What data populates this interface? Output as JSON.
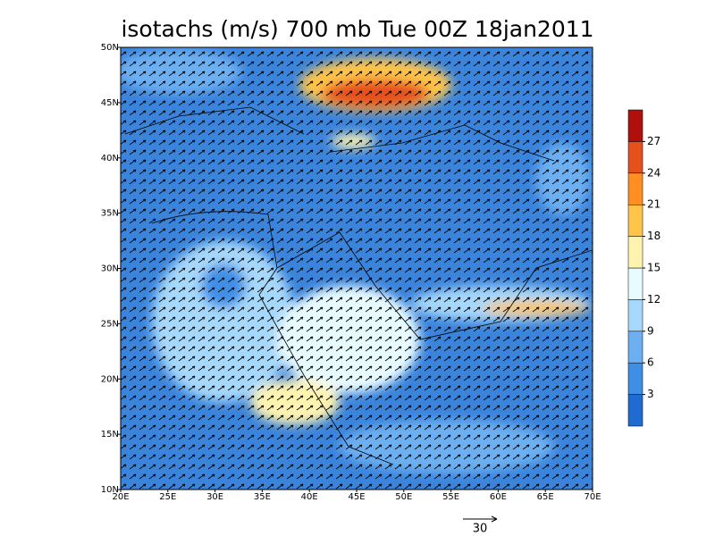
{
  "title": "isotachs (m/s) 700 mb Tue 00Z 18jan2011",
  "map": {
    "xlim": [
      20,
      70
    ],
    "ylim": [
      10,
      50
    ],
    "xticks": [
      {
        "value": 20,
        "label": "20E"
      },
      {
        "value": 25,
        "label": "25E"
      },
      {
        "value": 30,
        "label": "30E"
      },
      {
        "value": 35,
        "label": "35E"
      },
      {
        "value": 40,
        "label": "40E"
      },
      {
        "value": 45,
        "label": "45E"
      },
      {
        "value": 50,
        "label": "50E"
      },
      {
        "value": 55,
        "label": "55E"
      },
      {
        "value": 60,
        "label": "60E"
      },
      {
        "value": 65,
        "label": "65E"
      },
      {
        "value": 70,
        "label": "70E"
      }
    ],
    "yticks": [
      {
        "value": 10,
        "label": "10N"
      },
      {
        "value": 15,
        "label": "15N"
      },
      {
        "value": 20,
        "label": "20N"
      },
      {
        "value": 25,
        "label": "25N"
      },
      {
        "value": 30,
        "label": "30N"
      },
      {
        "value": 35,
        "label": "35N"
      },
      {
        "value": 40,
        "label": "40N"
      },
      {
        "value": 45,
        "label": "45N"
      },
      {
        "value": 50,
        "label": "50N"
      }
    ]
  },
  "colorbar": {
    "lim": [
      0,
      30
    ],
    "ticks": [
      3,
      6,
      9,
      12,
      15,
      18,
      21,
      24,
      27
    ],
    "colors": [
      "#1f6bd0",
      "#3f8fe6",
      "#6db0f2",
      "#a6d8fb",
      "#e8fbff",
      "#fff3b0",
      "#ffc44a",
      "#ff8f22",
      "#e5501c",
      "#b0100c"
    ]
  },
  "reference_vector": 30
}
